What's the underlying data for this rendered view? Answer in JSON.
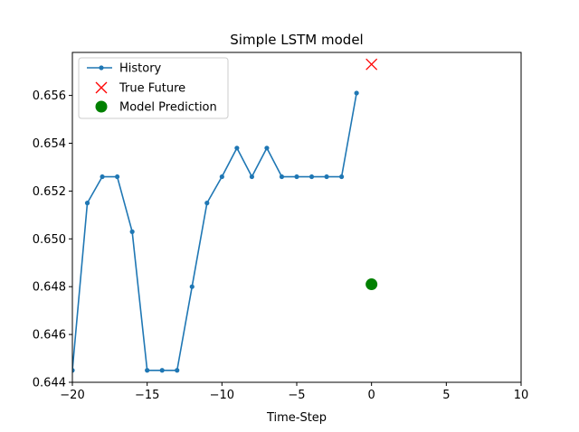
{
  "chart_data": {
    "type": "line",
    "title": "Simple LSTM model",
    "xlabel": "Time-Step",
    "ylabel": "",
    "xlim": [
      -20,
      10
    ],
    "ylim": [
      0.644,
      0.6578
    ],
    "xticks": [
      -20,
      -15,
      -10,
      -5,
      0,
      5,
      10
    ],
    "xtick_labels": [
      "−20",
      "−15",
      "−10",
      "−5",
      "0",
      "5",
      "10"
    ],
    "yticks": [
      0.644,
      0.646,
      0.648,
      0.65,
      0.652,
      0.654,
      0.656
    ],
    "ytick_labels": [
      "0.644",
      "0.646",
      "0.648",
      "0.650",
      "0.652",
      "0.654",
      "0.656"
    ],
    "grid": false,
    "legend_position": "top-left",
    "series": [
      {
        "name": "History",
        "kind": "line-with-markers",
        "color": "#1f77b4",
        "x": [
          -20,
          -19,
          -18,
          -17,
          -16,
          -15,
          -14,
          -13,
          -12,
          -11,
          -10,
          -9,
          -8,
          -7,
          -6,
          -5,
          -4,
          -3,
          -2,
          -1
        ],
        "y": [
          0.6445,
          0.6515,
          0.6526,
          0.6526,
          0.6503,
          0.6445,
          0.6445,
          0.6445,
          0.648,
          0.6515,
          0.6526,
          0.6538,
          0.6526,
          0.6538,
          0.6526,
          0.6526,
          0.6526,
          0.6526,
          0.6526,
          0.6561
        ]
      },
      {
        "name": "True Future",
        "kind": "x-marker",
        "color": "#ff0000",
        "x": [
          0
        ],
        "y": [
          0.6573
        ]
      },
      {
        "name": "Model Prediction",
        "kind": "circle-marker",
        "color": "#008000",
        "x": [
          0
        ],
        "y": [
          0.6481
        ]
      }
    ]
  }
}
